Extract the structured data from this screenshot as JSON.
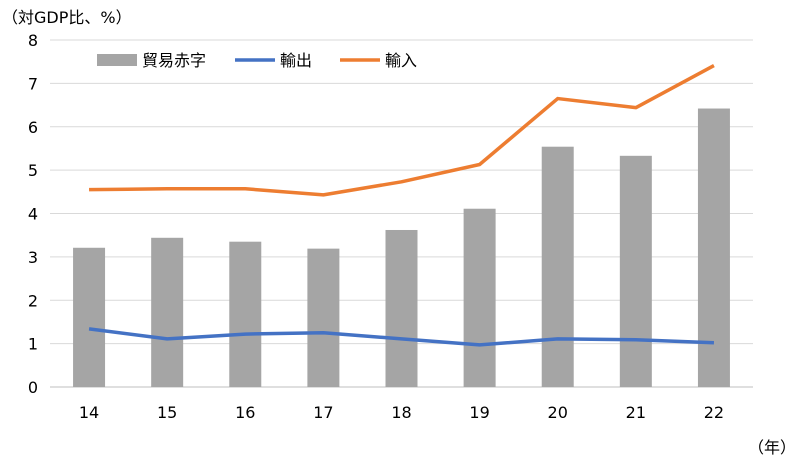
{
  "chart_data": {
    "type": "bar+line",
    "y_unit_label": "（対GDP比、%）",
    "x_unit_label": "（年）",
    "categories": [
      "14",
      "15",
      "16",
      "17",
      "18",
      "19",
      "20",
      "21",
      "22"
    ],
    "ylim": [
      0,
      8
    ],
    "yticks": [
      "0",
      "1",
      "2",
      "3",
      "4",
      "5",
      "6",
      "7",
      "8"
    ],
    "grid": true,
    "legend_position": "top-left",
    "series": [
      {
        "name": "貿易赤字",
        "kind": "bar",
        "color": "#a5a5a5",
        "values": [
          3.21,
          3.44,
          3.35,
          3.19,
          3.62,
          4.11,
          5.54,
          5.33,
          6.42
        ]
      },
      {
        "name": "輸出",
        "kind": "line",
        "color": "#4472c4",
        "values": [
          1.34,
          1.11,
          1.22,
          1.25,
          1.11,
          0.97,
          1.11,
          1.09,
          1.02
        ]
      },
      {
        "name": "輸入",
        "kind": "line",
        "color": "#ed7d31",
        "values": [
          4.55,
          4.57,
          4.57,
          4.43,
          4.73,
          5.13,
          6.65,
          6.44,
          7.41
        ]
      }
    ]
  }
}
